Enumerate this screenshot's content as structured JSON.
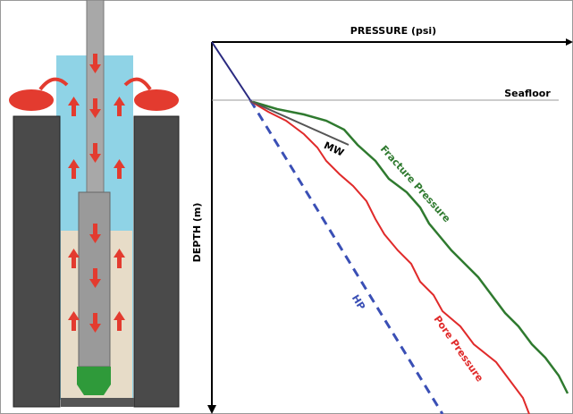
{
  "chart": {
    "x_axis_label": "PRESSURE (psi)",
    "y_axis_label": "DEPTH (m)",
    "seafloor_label": "Seafloor",
    "curves": {
      "mw": "MW",
      "fracture": "Fracture Pressure",
      "pore": "Pore Pressure",
      "hp": "HP"
    }
  }
}
